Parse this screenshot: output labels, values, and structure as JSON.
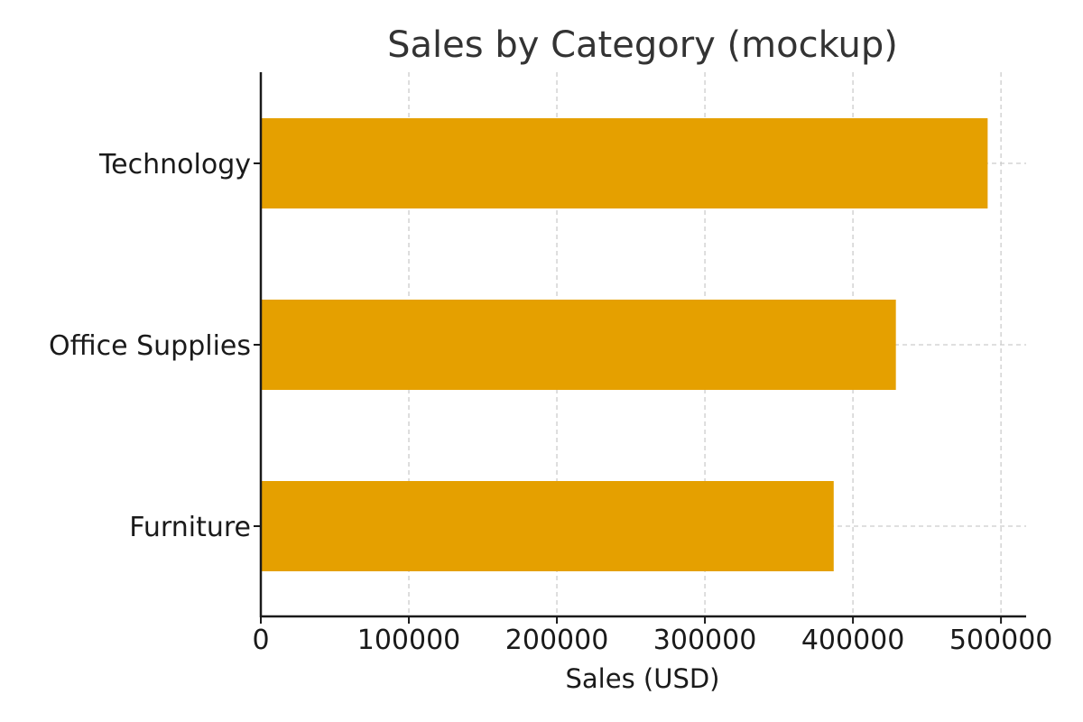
{
  "chart_data": {
    "type": "bar",
    "orientation": "horizontal",
    "title": "Sales by Category (mockup)",
    "xlabel": "Sales (USD)",
    "ylabel": "",
    "categories": [
      "Technology",
      "Office Supplies",
      "Furniture"
    ],
    "values": [
      491000,
      429000,
      387000
    ],
    "xlim": [
      0,
      517000
    ],
    "x_ticks": [
      0,
      100000,
      200000,
      300000,
      400000,
      500000
    ],
    "x_tick_labels": [
      "0",
      "100000",
      "200000",
      "300000",
      "400000",
      "500000"
    ],
    "bar_color": "#E5A000",
    "grid": true,
    "grid_style": "dashed"
  }
}
